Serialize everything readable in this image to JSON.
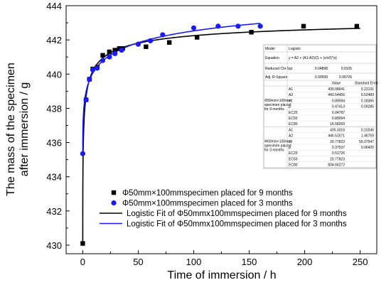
{
  "chart_data": {
    "type": "scatter",
    "xlabel": "Time of immersion / h",
    "ylabel_lines": [
      "The mass of the specimen",
      "after immersion / g"
    ],
    "xlim": [
      -15,
      265
    ],
    "ylim": [
      429.5,
      444
    ],
    "x_ticks": [
      0,
      50,
      100,
      150,
      200,
      250
    ],
    "y_ticks": [
      430,
      432,
      434,
      436,
      438,
      440,
      442,
      444
    ],
    "grid": false,
    "legend_position": "bottom-center",
    "series": [
      {
        "name": "Φ50mm×100mmspecimen placed for 9 months",
        "marker": "square",
        "color": "#000000",
        "x": [
          0,
          3,
          6,
          9,
          13,
          18,
          24,
          29,
          33,
          36,
          57,
          78,
          103,
          152,
          199,
          247
        ],
        "y": [
          430.1,
          438.5,
          439.7,
          440.3,
          440.4,
          441.1,
          441.3,
          441.4,
          441.5,
          441.5,
          441.6,
          441.85,
          442.15,
          442.45,
          442.8,
          442.8
        ]
      },
      {
        "name": "Φ50mm×100mmspecimen placed for 3 months",
        "marker": "circle",
        "color": "#1a1aff",
        "x": [
          0,
          3,
          6,
          9,
          13,
          18,
          24,
          29,
          35,
          50,
          61,
          72,
          100,
          122,
          140,
          160
        ],
        "y": [
          435.35,
          438.5,
          439.7,
          440.25,
          440.35,
          440.8,
          441.0,
          441.2,
          441.4,
          441.75,
          441.95,
          442.3,
          442.7,
          442.8,
          442.8,
          442.8
        ]
      }
    ],
    "fits": [
      {
        "name": "Logistic Fit of Φ50mmx100mmspecimen placed for 9 months",
        "color": "#000000",
        "A1": 430.08641,
        "A2": 443.54456,
        "x0": 0.89094,
        "p": 0.47413,
        "x_range": [
          0,
          250
        ]
      },
      {
        "name": "Logistic Fit of Φ50mmx100mmspecimen placed for 3 months",
        "color": "#1a1aff",
        "A1": 435.3316,
        "A2": 446.51571,
        "x0": 20.77823,
        "p": 0.37537,
        "x_range": [
          0,
          160
        ]
      }
    ],
    "fit_table": {
      "rows": [
        [
          "Model",
          "Logistic",
          ""
        ],
        [
          "Equation",
          "y = A2 + (A1-A2)/(1 + (x/x0)^p)",
          ""
        ],
        [
          "Reduced Chi-Sqr",
          "0.04898",
          "0.0105"
        ],
        [
          "Adj. R-Square",
          "0.99599",
          "0.99726"
        ]
      ],
      "param_header": [
        "",
        "",
        "Value",
        "Standard Error"
      ],
      "groups": [
        {
          "label": [
            "Φ50mm×100mm",
            "specimen placed",
            "for 9 months"
          ],
          "rows": [
            [
              "A1",
              "430.08641",
              "0.22131"
            ],
            [
              "A2",
              "443.54456",
              "0.52489"
            ],
            [
              "x0",
              "0.89094",
              "0.18365"
            ],
            [
              "p",
              "0.47413",
              "0.09285"
            ],
            [
              "EC20",
              "0.04787",
              ""
            ],
            [
              "EC50",
              "0.89094",
              ""
            ],
            [
              "EC80",
              "16.58269",
              ""
            ]
          ]
        },
        {
          "label": [
            "Φ50mm×100mm",
            "specimen placed",
            "for 3 months"
          ],
          "rows": [
            [
              "A1",
              "435.3316",
              "0.10246"
            ],
            [
              "A2",
              "446.51571",
              "1.46759"
            ],
            [
              "x0",
              "20.77823",
              "55.07547"
            ],
            [
              "p",
              "0.37537",
              "0.06425"
            ],
            [
              "EC20",
              "0.51726",
              ""
            ],
            [
              "EC50",
              "20.77823",
              ""
            ],
            [
              "EC80",
              "834.66272",
              ""
            ]
          ]
        }
      ]
    }
  }
}
